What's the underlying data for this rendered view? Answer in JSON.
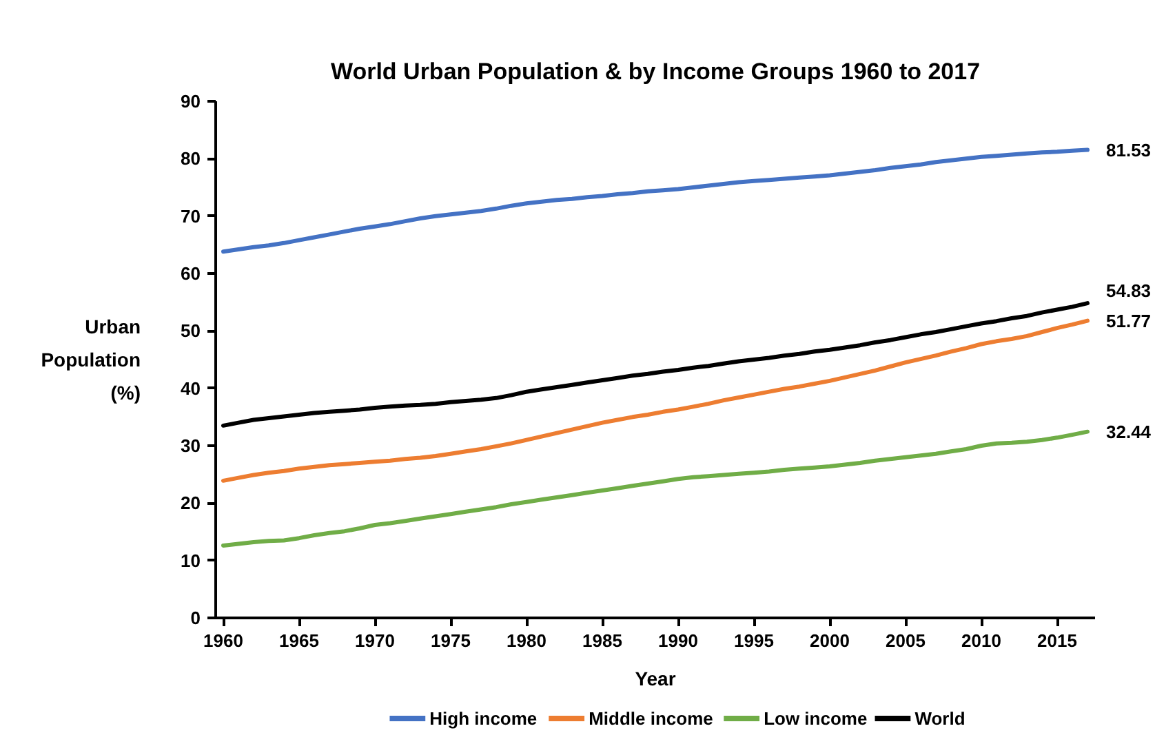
{
  "chart_data": {
    "type": "line",
    "title": "World Urban Population & by Income Groups 1960 to 2017",
    "xlabel": "Year",
    "ylabel": "Urban Population (%)",
    "x": [
      1960,
      1961,
      1962,
      1963,
      1964,
      1965,
      1966,
      1967,
      1968,
      1969,
      1970,
      1971,
      1972,
      1973,
      1974,
      1975,
      1976,
      1977,
      1978,
      1979,
      1980,
      1981,
      1982,
      1983,
      1984,
      1985,
      1986,
      1987,
      1988,
      1989,
      1990,
      1991,
      1992,
      1993,
      1994,
      1995,
      1996,
      1997,
      1998,
      1999,
      2000,
      2001,
      2002,
      2003,
      2004,
      2005,
      2006,
      2007,
      2008,
      2009,
      2010,
      2011,
      2012,
      2013,
      2014,
      2015,
      2016,
      2017
    ],
    "xlim": [
      1959.5,
      2017.5
    ],
    "xticks": [
      1960,
      1965,
      1970,
      1975,
      1980,
      1985,
      1990,
      1995,
      2000,
      2005,
      2010,
      2015
    ],
    "ylim": [
      0,
      90
    ],
    "yticks": [
      0,
      10,
      20,
      30,
      40,
      50,
      60,
      70,
      80,
      90
    ],
    "grid": false,
    "legend": "bottom",
    "line_style": "solid",
    "series": [
      {
        "name": "High income",
        "color": "#4472c4",
        "values": [
          63.8,
          64.2,
          64.6,
          64.9,
          65.3,
          65.8,
          66.3,
          66.8,
          67.3,
          67.8,
          68.2,
          68.6,
          69.1,
          69.6,
          70.0,
          70.3,
          70.6,
          70.9,
          71.3,
          71.8,
          72.2,
          72.5,
          72.8,
          73.0,
          73.3,
          73.5,
          73.8,
          74.0,
          74.3,
          74.5,
          74.7,
          75.0,
          75.3,
          75.6,
          75.9,
          76.1,
          76.3,
          76.5,
          76.7,
          76.9,
          77.1,
          77.4,
          77.7,
          78.0,
          78.4,
          78.7,
          79.0,
          79.4,
          79.7,
          80.0,
          80.3,
          80.5,
          80.7,
          80.9,
          81.1,
          81.2,
          81.4,
          81.53
        ],
        "value_labels": [
          null,
          null,
          null,
          null,
          null,
          null,
          null,
          null,
          null,
          null,
          null,
          null,
          null,
          null,
          null,
          null,
          null,
          null,
          null,
          null,
          null,
          null,
          null,
          null,
          null,
          null,
          null,
          null,
          null,
          null,
          null,
          null,
          null,
          null,
          null,
          null,
          null,
          null,
          null,
          null,
          null,
          null,
          null,
          null,
          null,
          null,
          null,
          null,
          null,
          null,
          null,
          null,
          null,
          null,
          null,
          null,
          null,
          "81.53"
        ]
      },
      {
        "name": "Middle income",
        "color": "#ed7d31",
        "values": [
          23.9,
          24.4,
          24.9,
          25.3,
          25.6,
          26.0,
          26.3,
          26.6,
          26.8,
          27.0,
          27.2,
          27.4,
          27.7,
          27.9,
          28.2,
          28.6,
          29.0,
          29.4,
          29.9,
          30.4,
          31.0,
          31.6,
          32.2,
          32.8,
          33.4,
          34.0,
          34.5,
          35.0,
          35.4,
          35.9,
          36.3,
          36.8,
          37.3,
          37.9,
          38.4,
          38.9,
          39.4,
          39.9,
          40.3,
          40.8,
          41.3,
          41.9,
          42.5,
          43.1,
          43.8,
          44.5,
          45.1,
          45.7,
          46.4,
          47.0,
          47.7,
          48.2,
          48.6,
          49.1,
          49.8,
          50.5,
          51.1,
          51.77
        ],
        "value_labels": [
          null,
          null,
          null,
          null,
          null,
          null,
          null,
          null,
          null,
          null,
          null,
          null,
          null,
          null,
          null,
          null,
          null,
          null,
          null,
          null,
          null,
          null,
          null,
          null,
          null,
          null,
          null,
          null,
          null,
          null,
          null,
          null,
          null,
          null,
          null,
          null,
          null,
          null,
          null,
          null,
          null,
          null,
          null,
          null,
          null,
          null,
          null,
          null,
          null,
          null,
          null,
          null,
          null,
          null,
          null,
          null,
          null,
          "51.77"
        ]
      },
      {
        "name": "Low income",
        "color": "#70ad47",
        "values": [
          12.6,
          12.9,
          13.2,
          13.4,
          13.5,
          13.9,
          14.4,
          14.8,
          15.1,
          15.6,
          16.2,
          16.5,
          16.9,
          17.3,
          17.7,
          18.1,
          18.5,
          18.9,
          19.3,
          19.8,
          20.2,
          20.6,
          21.0,
          21.4,
          21.8,
          22.2,
          22.6,
          23.0,
          23.4,
          23.8,
          24.2,
          24.5,
          24.7,
          24.9,
          25.1,
          25.3,
          25.5,
          25.8,
          26.0,
          26.2,
          26.4,
          26.7,
          27.0,
          27.4,
          27.7,
          28.0,
          28.3,
          28.6,
          29.0,
          29.4,
          30.0,
          30.4,
          30.5,
          30.7,
          31.0,
          31.4,
          31.9,
          32.44
        ],
        "value_labels": [
          null,
          null,
          null,
          null,
          null,
          null,
          null,
          null,
          null,
          null,
          null,
          null,
          null,
          null,
          null,
          null,
          null,
          null,
          null,
          null,
          null,
          null,
          null,
          null,
          null,
          null,
          null,
          null,
          null,
          null,
          null,
          null,
          null,
          null,
          null,
          null,
          null,
          null,
          null,
          null,
          null,
          null,
          null,
          null,
          null,
          null,
          null,
          null,
          null,
          null,
          null,
          null,
          null,
          null,
          null,
          null,
          null,
          "32.44"
        ]
      },
      {
        "name": "World",
        "color": "#000000",
        "values": [
          33.5,
          34.0,
          34.5,
          34.8,
          35.1,
          35.4,
          35.7,
          35.9,
          36.1,
          36.3,
          36.6,
          36.8,
          37.0,
          37.1,
          37.3,
          37.6,
          37.8,
          38.0,
          38.3,
          38.8,
          39.4,
          39.8,
          40.2,
          40.6,
          41.0,
          41.4,
          41.8,
          42.2,
          42.5,
          42.9,
          43.2,
          43.6,
          43.9,
          44.3,
          44.7,
          45.0,
          45.3,
          45.7,
          46.0,
          46.4,
          46.7,
          47.1,
          47.5,
          48.0,
          48.4,
          48.9,
          49.4,
          49.8,
          50.3,
          50.8,
          51.3,
          51.7,
          52.2,
          52.6,
          53.2,
          53.7,
          54.2,
          54.83
        ],
        "value_labels": [
          null,
          null,
          null,
          null,
          null,
          null,
          null,
          null,
          null,
          null,
          null,
          null,
          null,
          null,
          null,
          null,
          null,
          null,
          null,
          null,
          null,
          null,
          null,
          null,
          null,
          null,
          null,
          null,
          null,
          null,
          null,
          null,
          null,
          null,
          null,
          null,
          null,
          null,
          null,
          null,
          null,
          null,
          null,
          null,
          null,
          null,
          null,
          null,
          null,
          null,
          null,
          null,
          null,
          null,
          null,
          null,
          null,
          "54.83"
        ]
      }
    ]
  }
}
